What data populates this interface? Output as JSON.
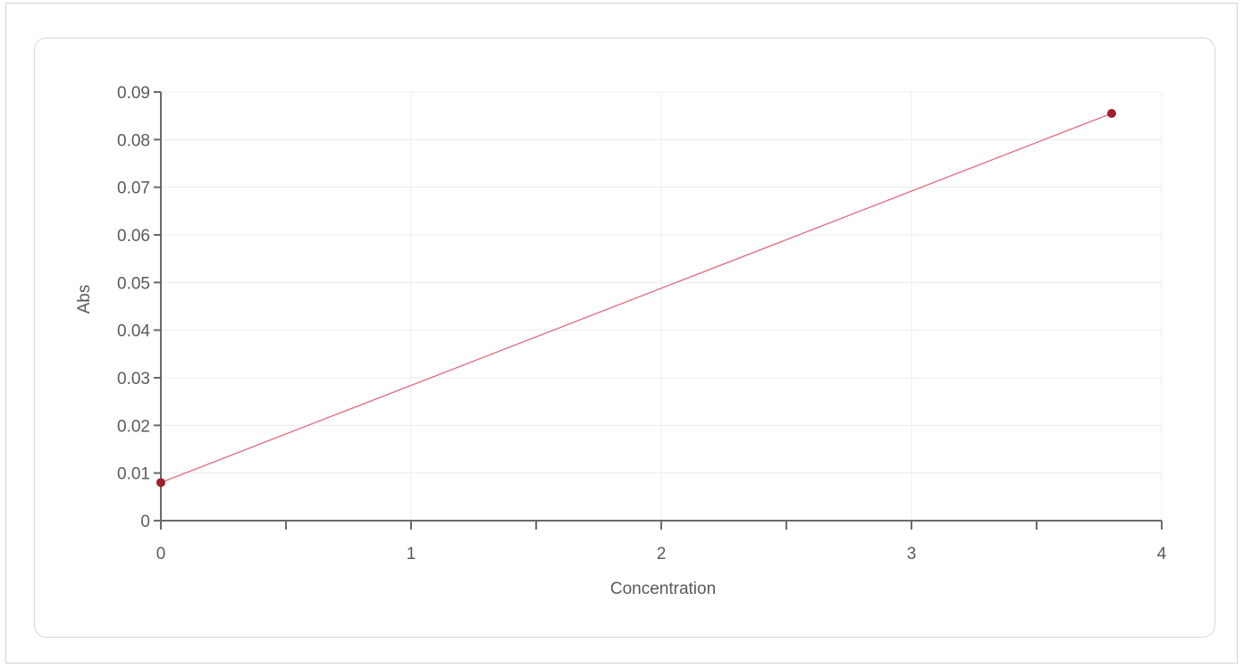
{
  "chart_data": {
    "type": "line",
    "xlabel": "Concentration",
    "ylabel": "Abs",
    "xlim": [
      0,
      4
    ],
    "ylim": [
      0,
      0.09
    ],
    "x_ticks": [
      "0",
      "1",
      "2",
      "3",
      "4"
    ],
    "y_ticks": [
      "0",
      "0.01",
      "0.02",
      "0.03",
      "0.04",
      "0.05",
      "0.06",
      "0.07",
      "0.08",
      "0.09"
    ],
    "x_minor_tick_step": 0.5,
    "grid": true,
    "series": [
      {
        "points": [
          {
            "x": 0,
            "y": 0.008
          },
          {
            "x": 3.8,
            "y": 0.0855
          }
        ],
        "line_color": "#e06a7a",
        "marker_color": "#9e1f2e"
      }
    ],
    "colors": {
      "axis": "#6a6a6a",
      "grid": "#ececec",
      "text": "#5a5a5a"
    }
  }
}
